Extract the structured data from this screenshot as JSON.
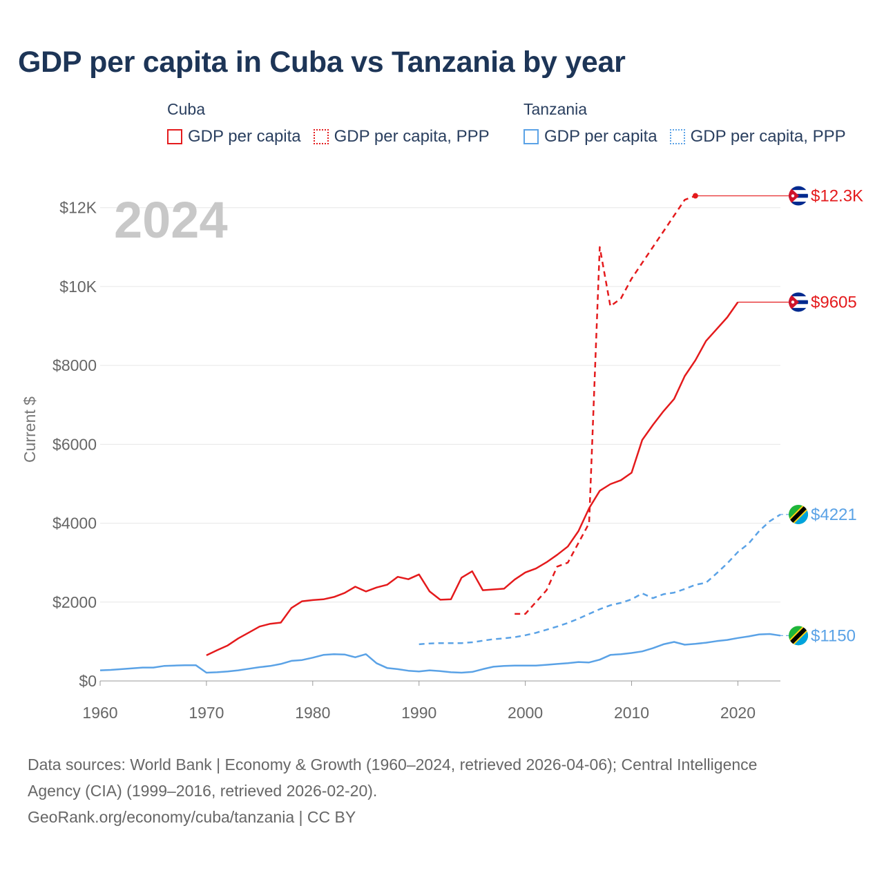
{
  "title": "GDP per capita in Cuba vs Tanzania by year",
  "legend": [
    {
      "group": "Cuba",
      "items": [
        {
          "label": "GDP per capita",
          "color": "#e41a1c",
          "style": "solid"
        },
        {
          "label": "GDP per capita, PPP",
          "color": "#e41a1c",
          "style": "dotted"
        }
      ]
    },
    {
      "group": "Tanzania",
      "items": [
        {
          "label": "GDP per capita",
          "color": "#5aa2e6",
          "style": "solid"
        },
        {
          "label": "GDP per capita, PPP",
          "color": "#5aa2e6",
          "style": "dotted"
        }
      ]
    }
  ],
  "year_label": "2024",
  "end_labels": [
    "$12.3K",
    "$9605",
    "$4221",
    "$1150"
  ],
  "sources": {
    "line1": "Data sources: World Bank | Economy & Growth (1960–2024, retrieved 2026-04-06); Central Intelligence",
    "line2": "Agency (CIA) (1999–2016, retrieved 2026-02-20).",
    "line3": "GeoRank.org/economy/cuba/tanzania | CC BY"
  },
  "chart_data": {
    "type": "line",
    "title": "GDP per capita in Cuba vs Tanzania by year",
    "xlabel": "",
    "ylabel": "Current $",
    "xlim": [
      1960,
      2024
    ],
    "ylim": [
      0,
      12800
    ],
    "x_ticks": [
      1960,
      1970,
      1980,
      1990,
      2000,
      2010,
      2020
    ],
    "x_tick_labels": [
      "1960",
      "1970",
      "1980",
      "1990",
      "2000",
      "2010",
      "2020"
    ],
    "y_ticks": [
      0,
      2000,
      4000,
      6000,
      8000,
      10000,
      12000
    ],
    "y_tick_labels": [
      "$0",
      "$2000",
      "$4000",
      "$6000",
      "$8000",
      "$10K",
      "$12K"
    ],
    "series": [
      {
        "name": "Cuba — GDP per capita",
        "color": "#e41a1c",
        "dash": "solid",
        "end_label": "$9605",
        "flag": "cuba",
        "x": [
          1970,
          1971,
          1972,
          1973,
          1974,
          1975,
          1976,
          1977,
          1978,
          1979,
          1980,
          1981,
          1982,
          1983,
          1984,
          1985,
          1986,
          1987,
          1988,
          1989,
          1990,
          1991,
          1992,
          1993,
          1994,
          1995,
          1996,
          1997,
          1998,
          1999,
          2000,
          2001,
          2002,
          2003,
          2004,
          2005,
          2006,
          2007,
          2008,
          2009,
          2010,
          2011,
          2012,
          2013,
          2014,
          2015,
          2016,
          2017,
          2018,
          2019,
          2020
        ],
        "y": [
          650,
          780,
          900,
          1080,
          1230,
          1380,
          1450,
          1480,
          1850,
          2020,
          2050,
          2070,
          2130,
          2230,
          2390,
          2270,
          2370,
          2440,
          2640,
          2580,
          2700,
          2270,
          2060,
          2070,
          2620,
          2780,
          2300,
          2320,
          2340,
          2570,
          2750,
          2850,
          3010,
          3200,
          3410,
          3800,
          4380,
          4820,
          4990,
          5090,
          5280,
          6110,
          6490,
          6840,
          7150,
          7730,
          8130,
          8620,
          8920,
          9220,
          9605
        ],
        "extend_to": 2024
      },
      {
        "name": "Cuba — GDP per capita, PPP",
        "color": "#e41a1c",
        "dash": "dashed",
        "end_label": "$12.3K",
        "flag": "cuba",
        "x": [
          1999,
          2000,
          2001,
          2002,
          2003,
          2004,
          2005,
          2006,
          2007,
          2008,
          2009,
          2010,
          2011,
          2012,
          2013,
          2014,
          2015,
          2016
        ],
        "y": [
          1700,
          1700,
          2000,
          2300,
          2900,
          3000,
          3500,
          4000,
          11000,
          9500,
          9700,
          10200,
          10600,
          11000,
          11400,
          11800,
          12200,
          12300
        ],
        "extend_to": 2024
      },
      {
        "name": "Tanzania — GDP per capita, PPP",
        "color": "#5aa2e6",
        "dash": "dashed",
        "end_label": "$4221",
        "flag": "tanzania",
        "x": [
          1990,
          1991,
          1992,
          1993,
          1994,
          1995,
          1996,
          1997,
          1998,
          1999,
          2000,
          2001,
          2002,
          2003,
          2004,
          2005,
          2006,
          2007,
          2008,
          2009,
          2010,
          2011,
          2012,
          2013,
          2014,
          2015,
          2016,
          2017,
          2018,
          2019,
          2020,
          2021,
          2022,
          2023,
          2024
        ],
        "y": [
          930,
          950,
          960,
          960,
          960,
          980,
          1020,
          1060,
          1080,
          1110,
          1160,
          1220,
          1300,
          1380,
          1470,
          1580,
          1700,
          1820,
          1920,
          1980,
          2070,
          2220,
          2100,
          2200,
          2240,
          2330,
          2440,
          2490,
          2730,
          2980,
          3270,
          3480,
          3800,
          4050,
          4221
        ]
      },
      {
        "name": "Tanzania — GDP per capita",
        "color": "#5aa2e6",
        "dash": "solid",
        "end_label": "$1150",
        "flag": "tanzania",
        "x": [
          1960,
          1961,
          1962,
          1963,
          1964,
          1965,
          1966,
          1967,
          1968,
          1969,
          1970,
          1971,
          1972,
          1973,
          1974,
          1975,
          1976,
          1977,
          1978,
          1979,
          1980,
          1981,
          1982,
          1983,
          1984,
          1985,
          1986,
          1987,
          1988,
          1989,
          1990,
          1991,
          1992,
          1993,
          1994,
          1995,
          1996,
          1997,
          1998,
          1999,
          2000,
          2001,
          2002,
          2003,
          2004,
          2005,
          2006,
          2007,
          2008,
          2009,
          2010,
          2011,
          2012,
          2013,
          2014,
          2015,
          2016,
          2017,
          2018,
          2019,
          2020,
          2021,
          2022,
          2023,
          2024
        ],
        "y": [
          270,
          280,
          300,
          320,
          340,
          340,
          380,
          390,
          400,
          400,
          210,
          220,
          240,
          270,
          310,
          350,
          380,
          430,
          510,
          530,
          590,
          660,
          680,
          670,
          600,
          680,
          450,
          330,
          300,
          260,
          240,
          270,
          250,
          220,
          210,
          230,
          300,
          360,
          380,
          390,
          390,
          390,
          410,
          430,
          450,
          480,
          470,
          540,
          660,
          680,
          710,
          750,
          830,
          930,
          990,
          920,
          940,
          970,
          1010,
          1040,
          1090,
          1130,
          1180,
          1190,
          1150
        ]
      }
    ]
  }
}
